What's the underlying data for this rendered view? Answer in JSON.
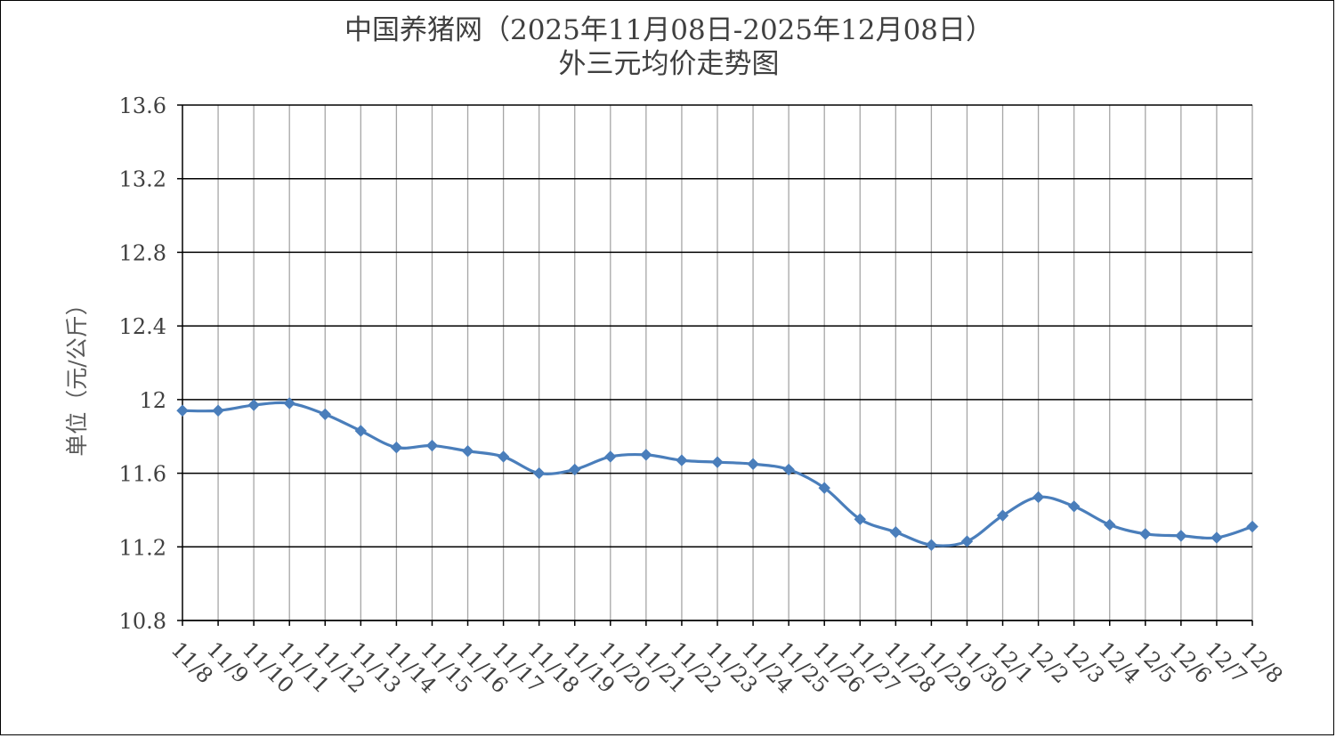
{
  "chart_data": {
    "type": "line",
    "title_line1": "中国养猪网（2025年11月08日-2025年12月08日）",
    "title_line2": "外三元均价走势图",
    "xlabel": "",
    "ylabel": "单位（元/公斤）",
    "ylim": [
      10.8,
      13.6
    ],
    "yticks": [
      "10.8",
      "11.2",
      "11.6",
      "12",
      "12.4",
      "12.8",
      "13.2",
      "13.6"
    ],
    "categories": [
      "11/8",
      "11/9",
      "11/10",
      "11/11",
      "11/12",
      "11/13",
      "11/14",
      "11/15",
      "11/16",
      "11/17",
      "11/18",
      "11/19",
      "11/20",
      "11/21",
      "11/22",
      "11/23",
      "11/24",
      "11/25",
      "11/26",
      "11/27",
      "11/28",
      "11/29",
      "11/30",
      "12/1",
      "12/2",
      "12/3",
      "12/4",
      "12/5",
      "12/6",
      "12/7",
      "12/8"
    ],
    "values": [
      11.94,
      11.94,
      11.97,
      11.98,
      11.92,
      11.83,
      11.74,
      11.75,
      11.72,
      11.69,
      11.6,
      11.62,
      11.69,
      11.7,
      11.67,
      11.66,
      11.65,
      11.62,
      11.52,
      11.35,
      11.28,
      11.21,
      11.23,
      11.37,
      11.47,
      11.42,
      11.32,
      11.27,
      11.26,
      11.25,
      11.31
    ],
    "grid": true,
    "line_color": "#4a7ebb",
    "marker": "diamond",
    "smooth": true
  }
}
